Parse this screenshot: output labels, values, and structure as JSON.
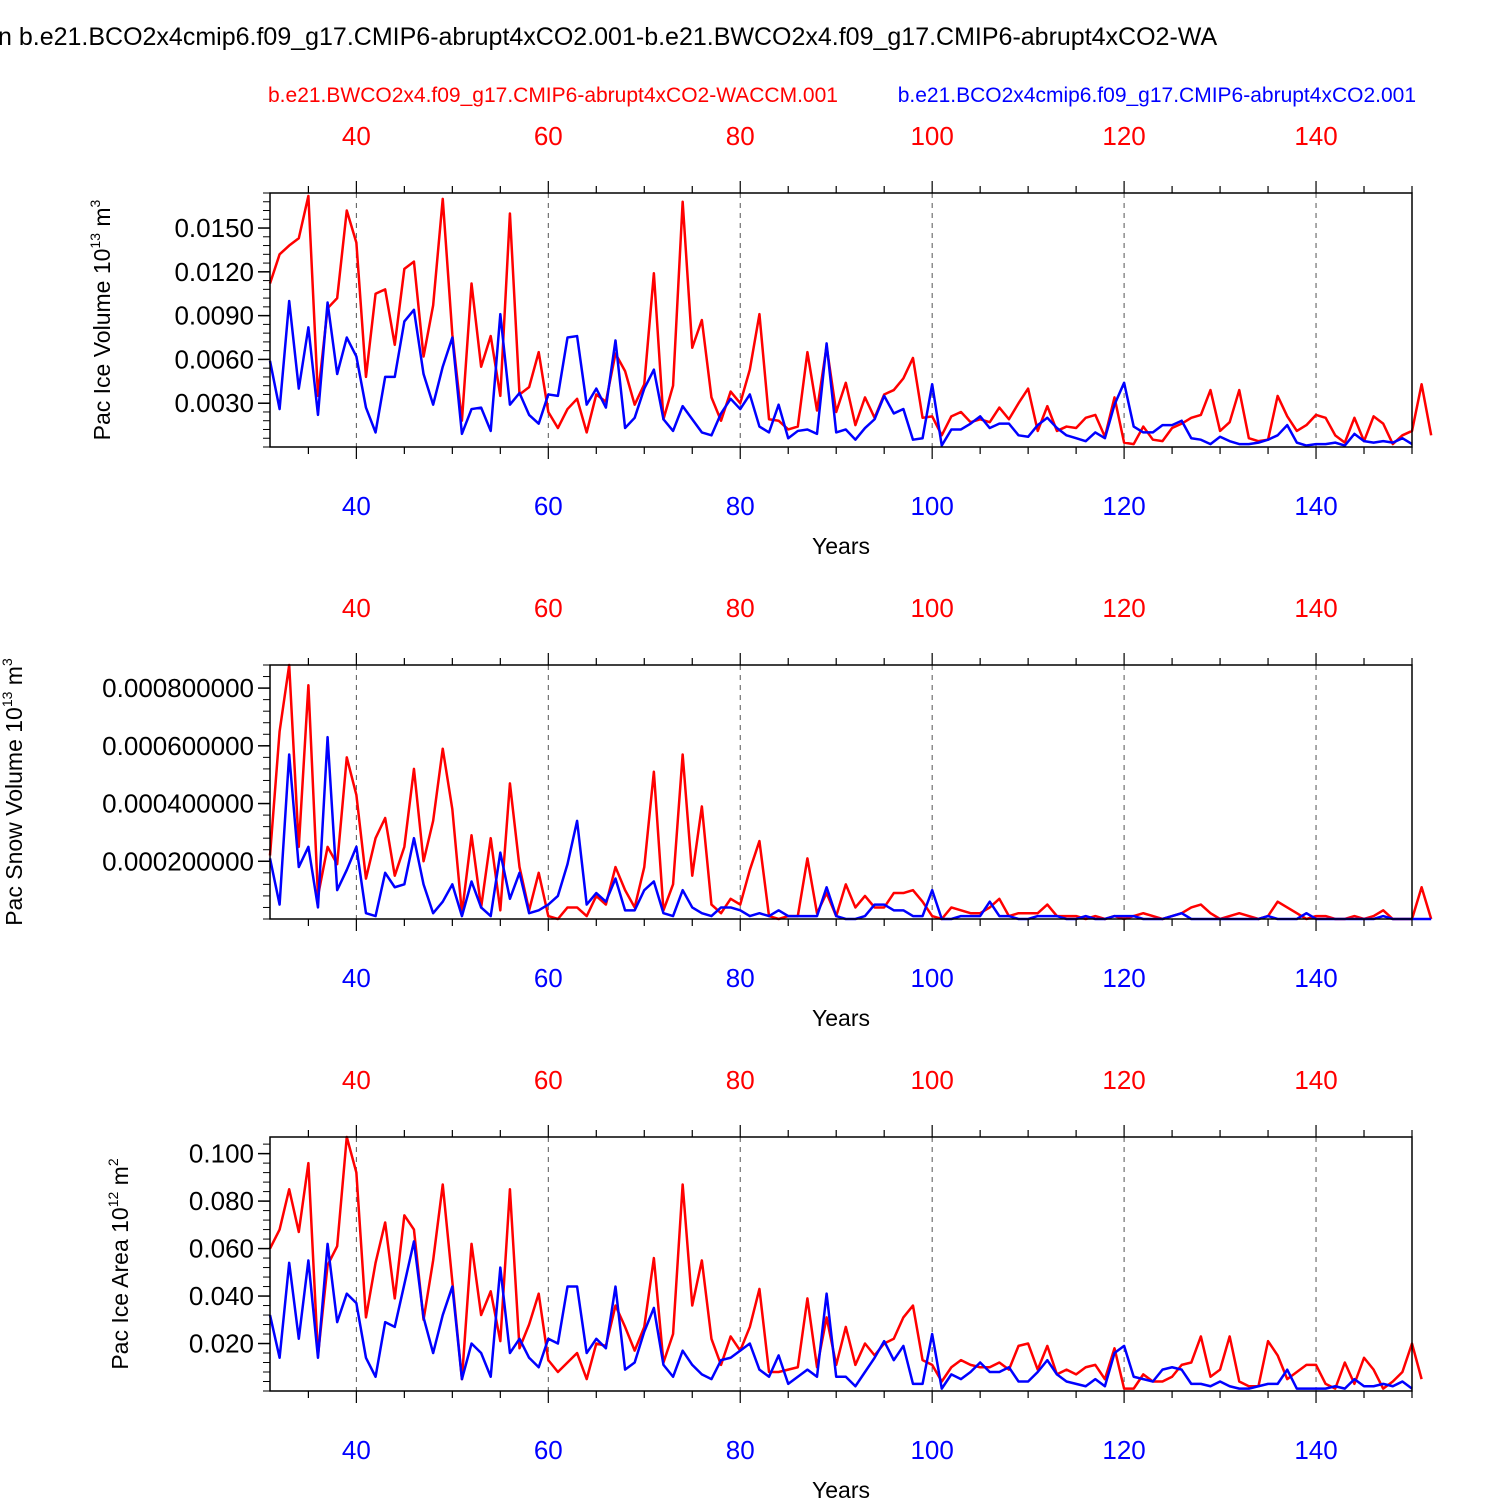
{
  "figure": {
    "title": "n b.e21.BCO2x4cmip6.f09_g17.CMIP6-abrupt4xCO2.001-b.e21.BWCO2x4.f09_g17.CMIP6-abrupt4xCO2-WA",
    "legend_red": "b.e21.BWCO2x4.f09_g17.CMIP6-abrupt4xCO2-WACCM.001",
    "legend_blue": "b.e21.BCO2x4cmip6.f09_g17.CMIP6-abrupt4xCO2.001",
    "colors": {
      "red": "#ff0000",
      "blue": "#0000ff",
      "axis": "#000000",
      "grid": "#555555"
    }
  },
  "chart_data": [
    {
      "type": "line",
      "ylabel_main": "Pac Ice Volume 10",
      "ylabel_sup1": "13",
      "ylabel_mid": " m",
      "ylabel_sup2": "3",
      "xlabel": "Years",
      "xlim": [
        31,
        150
      ],
      "ylim": [
        0.0,
        0.0174
      ],
      "yticks": [
        0.003,
        0.006,
        0.009,
        0.012,
        0.015
      ],
      "ytick_labels": [
        "0.0030",
        "0.0060",
        "0.0090",
        "0.0120",
        "0.0150"
      ],
      "yminor": 0.0006,
      "xticks": [
        40,
        60,
        80,
        100,
        120,
        140
      ],
      "xtick_labels": [
        "40",
        "60",
        "80",
        "100",
        "120",
        "140"
      ],
      "x_start": 31,
      "series": [
        {
          "name": "b.e21.BWCO2x4.f09_g17.CMIP6-abrupt4xCO2-WACCM.001",
          "color": "red",
          "values": [
            0.0112,
            0.0132,
            0.0138,
            0.0143,
            0.0172,
            0.0035,
            0.0095,
            0.0102,
            0.0162,
            0.014,
            0.0048,
            0.0105,
            0.0108,
            0.007,
            0.0122,
            0.0127,
            0.0062,
            0.0097,
            0.017,
            0.0077,
            0.0018,
            0.0112,
            0.0055,
            0.0076,
            0.0035,
            0.016,
            0.0036,
            0.0041,
            0.0065,
            0.0024,
            0.0013,
            0.0026,
            0.0033,
            0.001,
            0.0036,
            0.0031,
            0.0064,
            0.0052,
            0.0029,
            0.0043,
            0.0119,
            0.0019,
            0.0042,
            0.0168,
            0.0068,
            0.0087,
            0.0034,
            0.0018,
            0.0038,
            0.003,
            0.0053,
            0.0091,
            0.0019,
            0.0018,
            0.0012,
            0.0014,
            0.0065,
            0.0025,
            0.0069,
            0.0024,
            0.0044,
            0.0015,
            0.0034,
            0.002,
            0.0036,
            0.0039,
            0.0047,
            0.0061,
            0.002,
            0.0021,
            0.0008,
            0.0021,
            0.0024,
            0.0017,
            0.0019,
            0.0017,
            0.0027,
            0.0019,
            0.003,
            0.004,
            0.0011,
            0.0028,
            0.0011,
            0.0014,
            0.0013,
            0.002,
            0.0022,
            0.0007,
            0.0034,
            0.0003,
            0.0002,
            0.0014,
            0.0005,
            0.0004,
            0.0013,
            0.0016,
            0.002,
            0.0022,
            0.0039,
            0.0011,
            0.0017,
            0.0039,
            0.0006,
            0.0004,
            0.0005,
            0.0035,
            0.0021,
            0.0011,
            0.0015,
            0.0022,
            0.002,
            0.0008,
            0.0003,
            0.002,
            0.0004,
            0.0021,
            0.0016,
            0.0002,
            0.0008,
            0.0011,
            0.0043,
            0.0008
          ]
        },
        {
          "name": "b.e21.BCO2x4cmip6.f09_g17.CMIP6-abrupt4xCO2.001",
          "color": "blue",
          "values": [
            0.0059,
            0.0026,
            0.01,
            0.004,
            0.0082,
            0.0022,
            0.0099,
            0.005,
            0.0075,
            0.0062,
            0.0027,
            0.001,
            0.0048,
            0.0048,
            0.0086,
            0.0094,
            0.005,
            0.0029,
            0.0055,
            0.0075,
            0.0009,
            0.0026,
            0.0027,
            0.0011,
            0.0091,
            0.0029,
            0.0037,
            0.0022,
            0.0016,
            0.0036,
            0.0035,
            0.0075,
            0.0076,
            0.0029,
            0.004,
            0.0027,
            0.0073,
            0.0013,
            0.002,
            0.004,
            0.0053,
            0.0019,
            0.0011,
            0.0028,
            0.0019,
            0.001,
            0.0008,
            0.0023,
            0.0033,
            0.0026,
            0.0036,
            0.0014,
            0.001,
            0.0029,
            0.0006,
            0.0011,
            0.0012,
            0.0009,
            0.0071,
            0.001,
            0.0012,
            0.0005,
            0.0013,
            0.0019,
            0.0035,
            0.0023,
            0.0026,
            0.0005,
            0.0006,
            0.0043,
            0.0001,
            0.0012,
            0.0012,
            0.0016,
            0.0021,
            0.0013,
            0.0016,
            0.0016,
            0.0008,
            0.0007,
            0.0015,
            0.002,
            0.0013,
            0.0008,
            0.0006,
            0.0004,
            0.001,
            0.0006,
            0.0029,
            0.0044,
            0.0014,
            0.001,
            0.001,
            0.0015,
            0.0015,
            0.0018,
            0.0006,
            0.0005,
            0.0002,
            0.0007,
            0.0004,
            0.0002,
            0.0002,
            0.0003,
            0.0005,
            0.0008,
            0.0015,
            0.0003,
            0.0001,
            0.0002,
            0.0002,
            0.0003,
            0.0001,
            0.0009,
            0.0004,
            0.0003,
            0.0004,
            0.0003,
            0.0006,
            0.0002
          ]
        }
      ]
    },
    {
      "type": "line",
      "ylabel_main": "Pac Snow Volume 10",
      "ylabel_sup1": "13",
      "ylabel_mid": " m",
      "ylabel_sup2": "3",
      "xlabel": "Years",
      "xlim": [
        31,
        150
      ],
      "ylim": [
        0.0,
        0.00088
      ],
      "yticks": [
        0.0002,
        0.0004,
        0.0006,
        0.0008
      ],
      "ytick_labels": [
        "0.000200000",
        "0.000400000",
        "0.000600000",
        "0.000800000"
      ],
      "yminor": 4e-05,
      "xticks": [
        40,
        60,
        80,
        100,
        120,
        140
      ],
      "xtick_labels": [
        "40",
        "60",
        "80",
        "100",
        "120",
        "140"
      ],
      "x_start": 31,
      "series": [
        {
          "name": "b.e21.BWCO2x4.f09_g17.CMIP6-abrupt4xCO2-WACCM.001",
          "color": "red",
          "values": [
            0.00022,
            0.00065,
            0.00088,
            0.00025,
            0.00081,
            8e-05,
            0.00025,
            0.00019,
            0.00056,
            0.00043,
            0.00014,
            0.00028,
            0.00035,
            0.00015,
            0.00025,
            0.00052,
            0.0002,
            0.00034,
            0.00059,
            0.00038,
            2e-05,
            0.00029,
            4e-05,
            0.00028,
            3e-05,
            0.00047,
            0.00018,
            3e-05,
            0.00016,
            1e-05,
            0.0,
            4e-05,
            4e-05,
            1e-05,
            8e-05,
            5e-05,
            0.00018,
            0.0001,
            4e-05,
            0.00018,
            0.00051,
            3e-05,
            0.00012,
            0.00057,
            0.00015,
            0.00039,
            5e-05,
            2e-05,
            7e-05,
            5e-05,
            0.00017,
            0.00027,
            1e-05,
            0.0,
            1e-05,
            1e-05,
            0.00021,
            2e-05,
            9e-05,
            1e-05,
            0.00012,
            4e-05,
            8e-05,
            4e-05,
            4e-05,
            9e-05,
            9e-05,
            0.0001,
            6e-05,
            1e-05,
            0.0,
            4e-05,
            3e-05,
            2e-05,
            2e-05,
            4e-05,
            7e-05,
            1e-05,
            2e-05,
            2e-05,
            2e-05,
            5e-05,
            1e-05,
            1e-05,
            1e-05,
            0.0,
            1e-05,
            0.0,
            1e-05,
            0.0,
            1e-05,
            2e-05,
            1e-05,
            0.0,
            1e-05,
            2e-05,
            4e-05,
            5e-05,
            2e-05,
            0.0,
            1e-05,
            2e-05,
            1e-05,
            0.0,
            1e-05,
            6e-05,
            4e-05,
            2e-05,
            0.0,
            1e-05,
            1e-05,
            0.0,
            0.0,
            1e-05,
            0.0,
            1e-05,
            3e-05,
            0.0,
            0.0,
            0.0,
            0.00011,
            0.0
          ]
        },
        {
          "name": "b.e21.BCO2x4cmip6.f09_g17.CMIP6-abrupt4xCO2.001",
          "color": "blue",
          "values": [
            0.00021,
            5e-05,
            0.00057,
            0.00018,
            0.00025,
            4e-05,
            0.00063,
            0.0001,
            0.00017,
            0.00025,
            2e-05,
            1e-05,
            0.00016,
            0.00011,
            0.00012,
            0.00028,
            0.00012,
            2e-05,
            6e-05,
            0.00012,
            1e-05,
            0.00013,
            4e-05,
            1e-05,
            0.00023,
            7e-05,
            0.00016,
            2e-05,
            3e-05,
            5e-05,
            8e-05,
            0.00019,
            0.00034,
            5e-05,
            9e-05,
            6e-05,
            0.00014,
            3e-05,
            3e-05,
            0.0001,
            0.00013,
            2e-05,
            1e-05,
            0.0001,
            4e-05,
            2e-05,
            1e-05,
            4e-05,
            4e-05,
            3e-05,
            1e-05,
            2e-05,
            1e-05,
            3e-05,
            1e-05,
            1e-05,
            1e-05,
            1e-05,
            0.00011,
            1e-05,
            0.0,
            0.0,
            1e-05,
            5e-05,
            5e-05,
            3e-05,
            3e-05,
            1e-05,
            1e-05,
            0.0001,
            0.0,
            0.0,
            1e-05,
            1e-05,
            1e-05,
            6e-05,
            1e-05,
            1e-05,
            0.0,
            0.0,
            1e-05,
            1e-05,
            1e-05,
            0.0,
            0.0,
            1e-05,
            0.0,
            0.0,
            1e-05,
            1e-05,
            1e-05,
            0.0,
            0.0,
            0.0,
            1e-05,
            2e-05,
            0.0,
            0.0,
            0.0,
            0.0,
            0.0,
            0.0,
            0.0,
            0.0,
            1e-05,
            0.0,
            0.0,
            0.0,
            2e-05,
            0.0,
            0.0,
            0.0,
            0.0,
            0.0,
            0.0,
            0.0,
            1e-05,
            0.0,
            0.0,
            0.0,
            0.0,
            0.0
          ]
        }
      ]
    },
    {
      "type": "line",
      "ylabel_main": "Pac Ice Area 10",
      "ylabel_sup1": "12",
      "ylabel_mid": " m",
      "ylabel_sup2": "2",
      "xlabel": "Years",
      "xlim": [
        31,
        150
      ],
      "ylim": [
        0.0,
        0.107
      ],
      "yticks": [
        0.02,
        0.04,
        0.06,
        0.08,
        0.1
      ],
      "ytick_labels": [
        "0.020",
        "0.040",
        "0.060",
        "0.080",
        "0.100"
      ],
      "yminor": 0.004,
      "xticks": [
        40,
        60,
        80,
        100,
        120,
        140
      ],
      "xtick_labels": [
        "40",
        "60",
        "80",
        "100",
        "120",
        "140"
      ],
      "x_start": 31,
      "series": [
        {
          "name": "b.e21.BWCO2x4.f09_g17.CMIP6-abrupt4xCO2-WACCM.001",
          "color": "red",
          "values": [
            0.06,
            0.068,
            0.085,
            0.067,
            0.096,
            0.015,
            0.053,
            0.061,
            0.107,
            0.092,
            0.031,
            0.054,
            0.071,
            0.039,
            0.074,
            0.068,
            0.03,
            0.055,
            0.087,
            0.046,
            0.005,
            0.062,
            0.032,
            0.042,
            0.021,
            0.085,
            0.018,
            0.028,
            0.041,
            0.013,
            0.008,
            0.012,
            0.016,
            0.005,
            0.02,
            0.019,
            0.036,
            0.027,
            0.017,
            0.027,
            0.056,
            0.012,
            0.024,
            0.087,
            0.036,
            0.055,
            0.022,
            0.011,
            0.023,
            0.017,
            0.027,
            0.043,
            0.008,
            0.008,
            0.009,
            0.01,
            0.039,
            0.01,
            0.031,
            0.011,
            0.027,
            0.011,
            0.02,
            0.015,
            0.02,
            0.022,
            0.031,
            0.036,
            0.013,
            0.011,
            0.004,
            0.01,
            0.013,
            0.011,
            0.01,
            0.01,
            0.012,
            0.009,
            0.019,
            0.02,
            0.009,
            0.019,
            0.007,
            0.009,
            0.007,
            0.01,
            0.011,
            0.005,
            0.018,
            0.001,
            0.001,
            0.007,
            0.004,
            0.004,
            0.006,
            0.011,
            0.012,
            0.023,
            0.006,
            0.009,
            0.023,
            0.004,
            0.002,
            0.002,
            0.021,
            0.015,
            0.005,
            0.008,
            0.011,
            0.011,
            0.003,
            0.001,
            0.012,
            0.003,
            0.014,
            0.009,
            0.001,
            0.004,
            0.008,
            0.02,
            0.005
          ]
        },
        {
          "name": "b.e21.BCO2x4cmip6.f09_g17.CMIP6-abrupt4xCO2.001",
          "color": "blue",
          "values": [
            0.032,
            0.014,
            0.054,
            0.022,
            0.055,
            0.014,
            0.062,
            0.029,
            0.041,
            0.037,
            0.014,
            0.006,
            0.029,
            0.027,
            0.045,
            0.063,
            0.031,
            0.016,
            0.032,
            0.044,
            0.005,
            0.02,
            0.016,
            0.006,
            0.052,
            0.016,
            0.022,
            0.014,
            0.01,
            0.022,
            0.02,
            0.044,
            0.044,
            0.016,
            0.022,
            0.018,
            0.044,
            0.009,
            0.012,
            0.025,
            0.035,
            0.011,
            0.006,
            0.017,
            0.011,
            0.007,
            0.005,
            0.013,
            0.014,
            0.017,
            0.02,
            0.009,
            0.006,
            0.015,
            0.003,
            0.006,
            0.009,
            0.006,
            0.041,
            0.006,
            0.006,
            0.002,
            0.008,
            0.014,
            0.021,
            0.013,
            0.019,
            0.003,
            0.003,
            0.024,
            0.001,
            0.007,
            0.005,
            0.008,
            0.012,
            0.008,
            0.008,
            0.01,
            0.004,
            0.004,
            0.008,
            0.013,
            0.007,
            0.004,
            0.003,
            0.002,
            0.005,
            0.002,
            0.016,
            0.019,
            0.006,
            0.005,
            0.004,
            0.009,
            0.01,
            0.009,
            0.003,
            0.003,
            0.002,
            0.004,
            0.002,
            0.001,
            0.001,
            0.002,
            0.003,
            0.003,
            0.009,
            0.001,
            0.001,
            0.001,
            0.001,
            0.002,
            0.001,
            0.005,
            0.002,
            0.002,
            0.003,
            0.002,
            0.004,
            0.001
          ]
        }
      ]
    }
  ]
}
